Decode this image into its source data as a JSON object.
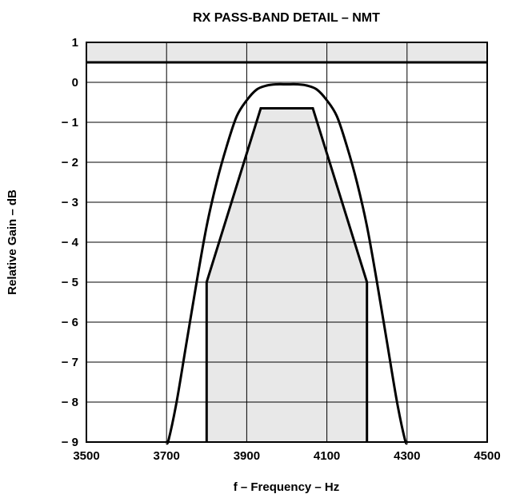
{
  "chart_data": {
    "type": "line",
    "title": "RX PASS-BAND DETAIL – NMT",
    "xlabel": "f – Frequency – Hz",
    "ylabel": "Relative Gain – dB",
    "xlim": [
      3500,
      4500
    ],
    "ylim": [
      -9,
      1
    ],
    "x_ticks": [
      3500,
      3700,
      3900,
      4100,
      4300,
      4500
    ],
    "x_tick_labels": [
      "3500",
      "3700",
      "3900",
      "4100",
      "4300",
      "4500"
    ],
    "y_ticks": [
      1,
      0,
      -1,
      -2,
      -3,
      -4,
      -5,
      -6,
      -7,
      -8,
      -9
    ],
    "y_tick_labels": [
      "1",
      "0",
      "− 1",
      "− 2",
      "− 3",
      "− 4",
      "− 5",
      "− 6",
      "− 7",
      "− 8",
      "− 9"
    ],
    "grid": true,
    "upper_limit_line": {
      "y": 0.5
    },
    "upper_shaded_region": {
      "y_from": 0.5,
      "y_to": 1
    },
    "outer_limit_curve": {
      "points": [
        [
          3700,
          -9
        ],
        [
          3705,
          -8.95
        ],
        [
          3725,
          -8
        ],
        [
          3750,
          -6.5
        ],
        [
          3775,
          -5.0
        ],
        [
          3800,
          -3.6
        ],
        [
          3825,
          -2.5
        ],
        [
          3850,
          -1.6
        ],
        [
          3875,
          -0.85
        ],
        [
          3900,
          -0.45
        ],
        [
          3925,
          -0.18
        ],
        [
          3950,
          -0.08
        ],
        [
          3975,
          -0.05
        ],
        [
          4000,
          -0.05
        ],
        [
          4025,
          -0.05
        ],
        [
          4050,
          -0.08
        ],
        [
          4075,
          -0.18
        ],
        [
          4100,
          -0.45
        ],
        [
          4125,
          -0.85
        ],
        [
          4150,
          -1.6
        ],
        [
          4175,
          -2.5
        ],
        [
          4200,
          -3.6
        ],
        [
          4225,
          -5.0
        ],
        [
          4250,
          -6.5
        ],
        [
          4275,
          -8
        ],
        [
          4295,
          -8.95
        ],
        [
          4300,
          -9
        ]
      ]
    },
    "inner_limit_mask": {
      "points": [
        [
          3800,
          -9
        ],
        [
          3800,
          -5
        ],
        [
          3935,
          -0.65
        ],
        [
          4065,
          -0.65
        ],
        [
          4200,
          -5
        ],
        [
          4200,
          -9
        ]
      ]
    },
    "colors": {
      "line": "#000000",
      "shade": "#e8e8e8",
      "grid": "#000000"
    }
  }
}
